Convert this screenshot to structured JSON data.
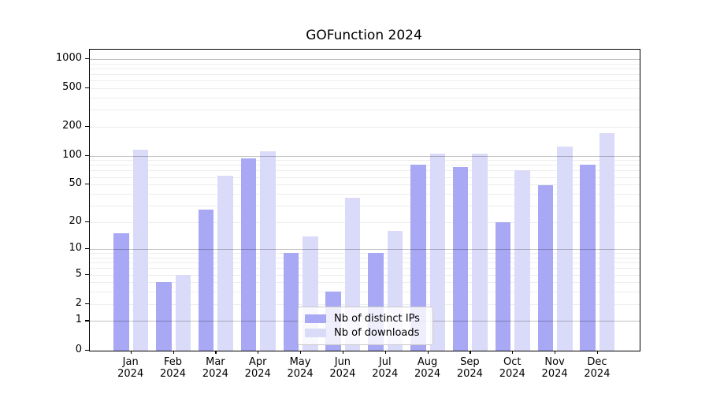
{
  "title": "GOFunction 2024",
  "chart_data": {
    "type": "bar",
    "title": "GOFunction 2024",
    "categories": [
      "Jan 2024",
      "Feb 2024",
      "Mar 2024",
      "Apr 2024",
      "May 2024",
      "Jun 2024",
      "Jul 2024",
      "Aug 2024",
      "Sep 2024",
      "Oct 2024",
      "Nov 2024",
      "Dec 2024"
    ],
    "series": [
      {
        "name": "Nb of distinct IPs",
        "color": "#a8a8f4",
        "values": [
          15,
          4,
          27,
          94,
          9,
          3,
          9,
          80,
          76,
          20,
          49,
          80
        ]
      },
      {
        "name": "Nb of downloads",
        "color": "#dadaf9",
        "values": [
          115,
          5,
          62,
          112,
          14,
          36,
          16,
          105,
          105,
          70,
          125,
          170
        ]
      }
    ],
    "y_ticks": [
      1000,
      500,
      200,
      100,
      50,
      20,
      10,
      5,
      2,
      1,
      0
    ],
    "y_scale": "log1p",
    "ylim": [
      0,
      1250
    ],
    "xlabel": "",
    "ylabel": "",
    "grid": "horizontal",
    "legend_position": "bottom-center"
  }
}
